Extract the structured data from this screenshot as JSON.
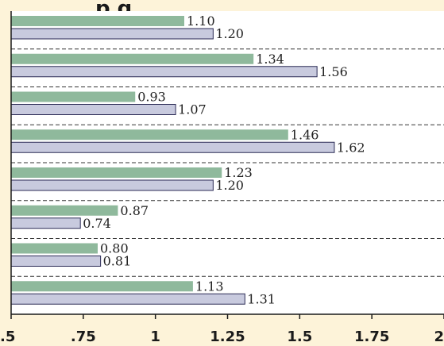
{
  "chart_data": {
    "type": "bar",
    "orientation": "horizontal",
    "title": "p    g",
    "xlim": [
      0.5,
      2
    ],
    "x_ticks": [
      0.5,
      0.75,
      1,
      1.25,
      1.5,
      1.75,
      2
    ],
    "x_tick_labels": [
      ".5",
      ".75",
      "1",
      "1.25",
      "1.5",
      "1.75",
      "2"
    ],
    "grid": "dashed horizontal separators between groups",
    "series": [
      {
        "color": "#8fb99c",
        "values": [
          1.1,
          1.34,
          0.93,
          1.46,
          1.23,
          0.87,
          0.8,
          1.13
        ],
        "labels": [
          "1.10",
          "1.34",
          "0.93",
          "1.46",
          "1.23",
          "0.87",
          "0.80",
          "1.13"
        ]
      },
      {
        "color": "#c8cade",
        "values": [
          1.2,
          1.56,
          1.07,
          1.62,
          1.2,
          0.74,
          0.81,
          1.31
        ],
        "labels": [
          "1.20",
          "1.56",
          "1.07",
          "1.62",
          "1.20",
          "0.74",
          "0.81",
          "1.31"
        ]
      }
    ]
  },
  "colors": {
    "background": "#fdf3d9",
    "plot_background": "#ffffff",
    "axis": "#1a1a1a"
  }
}
